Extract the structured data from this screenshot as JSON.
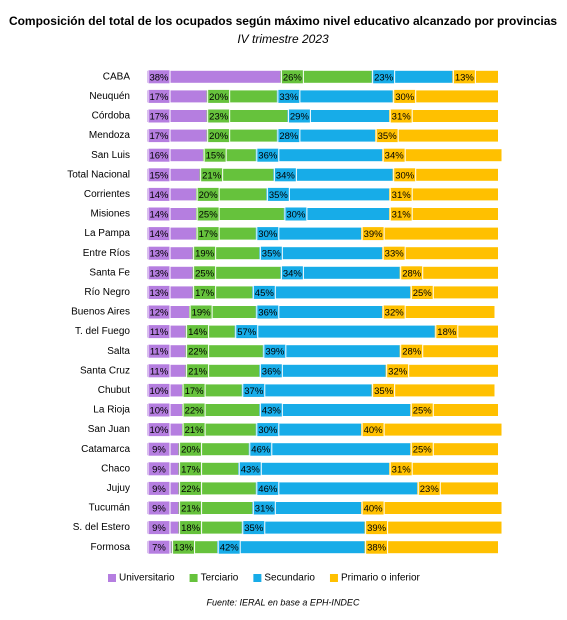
{
  "chart_data": {
    "type": "stacked_bar_horizontal",
    "title": "Composición del total de los ocupados según máximo nivel educativo alcanzado por provincias",
    "subtitle": "IV trimestre 2023",
    "source": "Fuente: IERAL en base a EPH-INDEC",
    "xlim": [
      0,
      100
    ],
    "categories": [
      "CABA",
      "Neuquén",
      "Córdoba",
      "Mendoza",
      "San Luis",
      "Total Nacional",
      "Corrientes",
      "Misiones",
      "La Pampa",
      "Entre Ríos",
      "Santa Fe",
      "Río Negro",
      "Buenos Aires",
      "T. del Fuego",
      "Salta",
      "Santa Cruz",
      "Chubut",
      "La Rioja",
      "San Juan",
      "Catamarca",
      "Chaco",
      "Jujuy",
      "Tucumán",
      "S. del Estero",
      "Formosa"
    ],
    "series": [
      {
        "name": "Universitario",
        "color": "#b57ee0",
        "values": [
          38,
          17,
          17,
          17,
          16,
          15,
          14,
          14,
          14,
          13,
          13,
          13,
          12,
          11,
          11,
          11,
          10,
          10,
          10,
          9,
          9,
          9,
          9,
          9,
          7
        ],
        "value_labels": [
          "38%",
          "17%",
          "17%",
          "17%",
          "16%",
          "15%",
          "14%",
          "14%",
          "14%",
          "13%",
          "13%",
          "13%",
          "12%",
          "11%",
          "11%",
          "11%",
          "10%",
          "10%",
          "10%",
          "9%",
          "9%",
          "9%",
          "9%",
          "9%",
          "7%"
        ]
      },
      {
        "name": "Terciario",
        "color": "#66c23c",
        "values": [
          26,
          20,
          23,
          20,
          15,
          21,
          20,
          25,
          17,
          19,
          25,
          17,
          19,
          14,
          22,
          21,
          17,
          22,
          21,
          20,
          17,
          22,
          21,
          18,
          13
        ],
        "value_labels": [
          "26%",
          "20%",
          "23%",
          "20%",
          "15%",
          "21%",
          "20%",
          "25%",
          "17%",
          "19%",
          "25%",
          "17%",
          "19%",
          "14%",
          "22%",
          "21%",
          "17%",
          "22%",
          "21%",
          "20%",
          "17%",
          "22%",
          "21%",
          "18%",
          "13%"
        ]
      },
      {
        "name": "Secundario",
        "color": "#17ace8",
        "values": [
          23,
          33,
          29,
          28,
          36,
          34,
          35,
          30,
          30,
          35,
          34,
          45,
          36,
          57,
          39,
          36,
          37,
          43,
          30,
          46,
          43,
          46,
          31,
          35,
          42
        ],
        "value_labels": [
          "23%",
          "33%",
          "29%",
          "28%",
          "36%",
          "34%",
          "35%",
          "30%",
          "30%",
          "35%",
          "34%",
          "45%",
          "36%",
          "57%",
          "39%",
          "36%",
          "37%",
          "43%",
          "30%",
          "46%",
          "43%",
          "46%",
          "31%",
          "35%",
          "42%"
        ]
      },
      {
        "name": "Primario o inferior",
        "color": "#ffc000",
        "values": [
          13,
          30,
          31,
          35,
          34,
          30,
          31,
          31,
          39,
          33,
          28,
          25,
          32,
          18,
          28,
          32,
          35,
          25,
          40,
          25,
          31,
          23,
          40,
          39,
          38
        ],
        "value_labels": [
          "13%",
          "30%",
          "31%",
          "35%",
          "34%",
          "30%",
          "31%",
          "31%",
          "39%",
          "33%",
          "28%",
          "25%",
          "32%",
          "18%",
          "28%",
          "32%",
          "35%",
          "25%",
          "40%",
          "25%",
          "31%",
          "23%",
          "40%",
          "39%",
          "38%"
        ]
      }
    ]
  }
}
